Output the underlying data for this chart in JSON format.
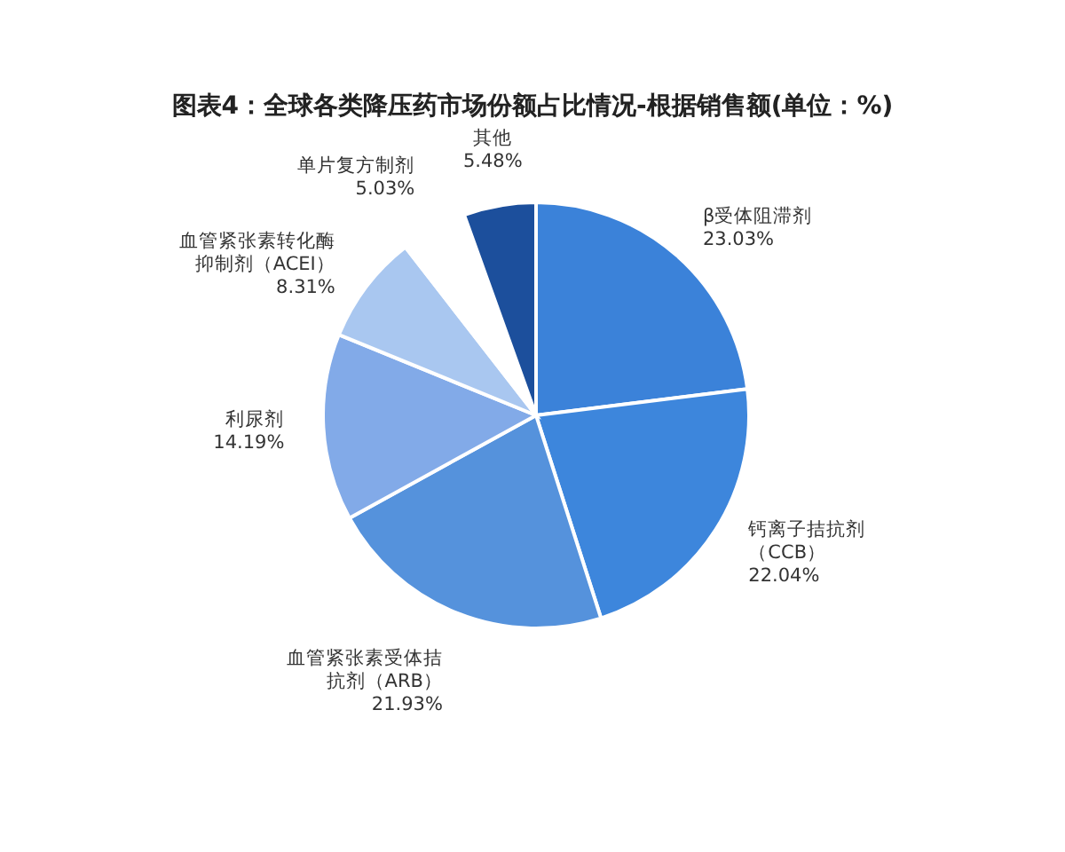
{
  "chart_data": {
    "type": "pie",
    "title": "图表4：全球各类降压药市场份额占比情况-根据销售额(单位：%)",
    "categories": [
      "β受体阻滞剂",
      "钙离子拮抗剂（CCB）",
      "血管紧张素受体拮抗剂（ARB）",
      "利尿剂",
      "血管紧张素转化酶抑制剂（ACEI）",
      "单片复方制剂",
      "其他"
    ],
    "values": [
      23.03,
      22.04,
      21.93,
      14.19,
      8.31,
      5.03,
      5.48
    ],
    "colors": [
      "#3b82d9",
      "#3d86dc",
      "#5592dc",
      "#82aae8",
      "#a9c7f0",
      "#ffffff",
      "#1c4f9c"
    ],
    "value_labels": [
      "23.03%",
      "22.04%",
      "21.93%",
      "14.19%",
      "8.31%",
      "5.03%",
      "5.48%"
    ]
  }
}
